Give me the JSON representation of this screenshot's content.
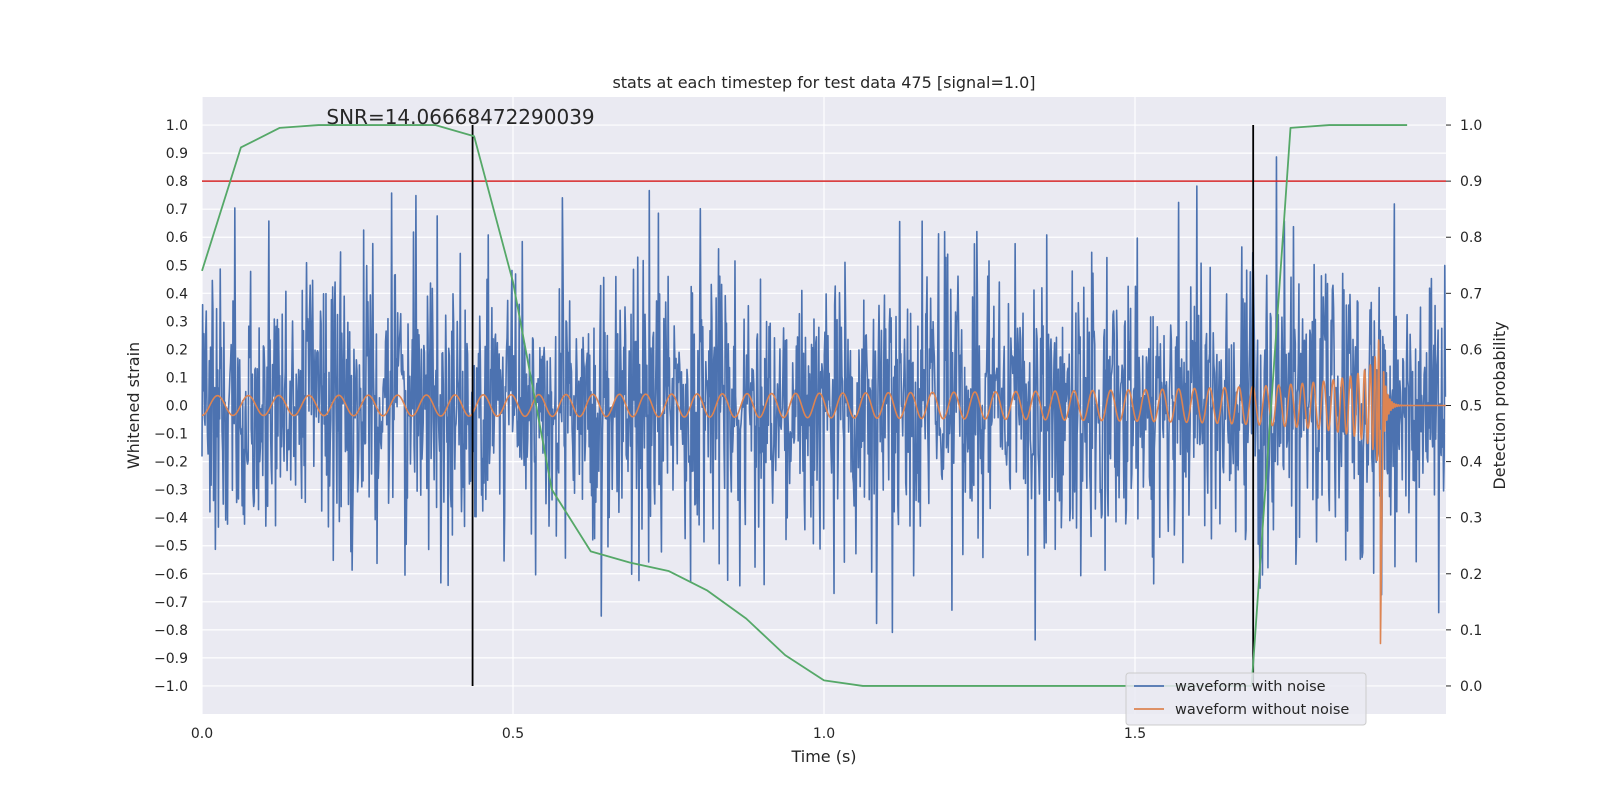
{
  "chart_data": {
    "type": "line",
    "title": "stats at each timestep for test data 475 [signal=1.0]",
    "xlabel": "Time (s)",
    "ylabel_left": "Whitened strain",
    "ylabel_right": "Detection probability",
    "xlim": [
      0.0,
      2.0
    ],
    "ylim_left": [
      -1.1,
      1.1
    ],
    "ylim_right": [
      -0.05,
      1.05
    ],
    "x_ticks": [
      0.0,
      0.5,
      1.0,
      1.5
    ],
    "x_tick_labels": [
      "0.0",
      "0.5",
      "1.0",
      "1.5"
    ],
    "y_ticks_left": [
      1.0,
      0.9,
      0.8,
      0.7,
      0.6,
      0.5,
      0.4,
      0.3,
      0.2,
      0.1,
      0.0,
      -0.1,
      -0.2,
      -0.3,
      -0.4,
      -0.5,
      -0.6,
      -0.7,
      -0.8,
      -0.9,
      -1.0
    ],
    "y_tick_labels_left": [
      "1.0",
      "0.9",
      "0.8",
      "0.7",
      "0.6",
      "0.5",
      "0.4",
      "0.3",
      "0.2",
      "0.1",
      "0.0",
      "−0.1",
      "−0.2",
      "−0.3",
      "−0.4",
      "−0.5",
      "−0.6",
      "−0.7",
      "−0.8",
      "−0.9",
      "−1.0"
    ],
    "y_ticks_right": [
      1.0,
      0.9,
      0.8,
      0.7,
      0.6,
      0.5,
      0.4,
      0.3,
      0.2,
      0.1,
      0.0
    ],
    "y_tick_labels_right": [
      "1.0",
      "0.9",
      "0.8",
      "0.7",
      "0.6",
      "0.5",
      "0.4",
      "0.3",
      "0.2",
      "0.1",
      "0.0"
    ],
    "grid": true,
    "annotation": "SNR=14.06668472290039",
    "annotation_x": 0.2,
    "annotation_y": 1.0,
    "threshold": {
      "axis": "left",
      "value": 0.8,
      "color": "#d62728"
    },
    "vertical_lines": [
      {
        "x": 0.435,
        "ymin": -1.0,
        "ymax": 1.0,
        "color": "#000000"
      },
      {
        "x": 1.69,
        "ymin": -1.0,
        "ymax": 1.0,
        "color": "#000000"
      }
    ],
    "series": [
      {
        "name": "waveform with noise",
        "axis": "left",
        "color": "#4c72b0",
        "kind": "noise",
        "n_samples": 2048,
        "x_range": [
          0.0,
          2.0
        ],
        "amplitude_std": 0.25
      },
      {
        "name": "waveform without noise",
        "axis": "left",
        "color": "#dd8452",
        "kind": "chirp",
        "x_range": [
          0.0,
          2.0
        ],
        "merger_time": 1.895,
        "start_freq_hz": 20,
        "start_amplitude": 0.035,
        "peak_amplitude": 0.57,
        "min_value": -0.78
      },
      {
        "name": "detection probability",
        "axis": "right",
        "color": "#55a868",
        "x": [
          0.0,
          0.0625,
          0.125,
          0.1875,
          0.25,
          0.3125,
          0.375,
          0.4375,
          0.5,
          0.5625,
          0.625,
          0.6875,
          0.75,
          0.8125,
          0.875,
          0.9375,
          1.0,
          1.0625,
          1.125,
          1.1875,
          1.25,
          1.3125,
          1.375,
          1.4375,
          1.5,
          1.5625,
          1.625,
          1.6875,
          1.75,
          1.8125,
          1.875,
          1.9375
        ],
        "values": [
          0.74,
          0.96,
          0.995,
          1.0,
          1.0,
          1.0,
          1.0,
          0.98,
          0.72,
          0.35,
          0.24,
          0.22,
          0.205,
          0.17,
          0.12,
          0.055,
          0.01,
          0.0,
          0.0,
          0.0,
          0.0,
          0.0,
          0.0,
          0.0,
          0.0,
          0.0,
          0.0,
          0.0,
          0.995,
          1.0,
          1.0,
          1.0
        ]
      }
    ],
    "legend": {
      "position": "lower-right",
      "entries": [
        {
          "label": "waveform with noise",
          "color": "#4c72b0"
        },
        {
          "label": "waveform without noise",
          "color": "#dd8452"
        }
      ]
    },
    "colors": {
      "axes_background": "#eaeaf2",
      "grid": "#ffffff",
      "text": "#262626"
    }
  }
}
